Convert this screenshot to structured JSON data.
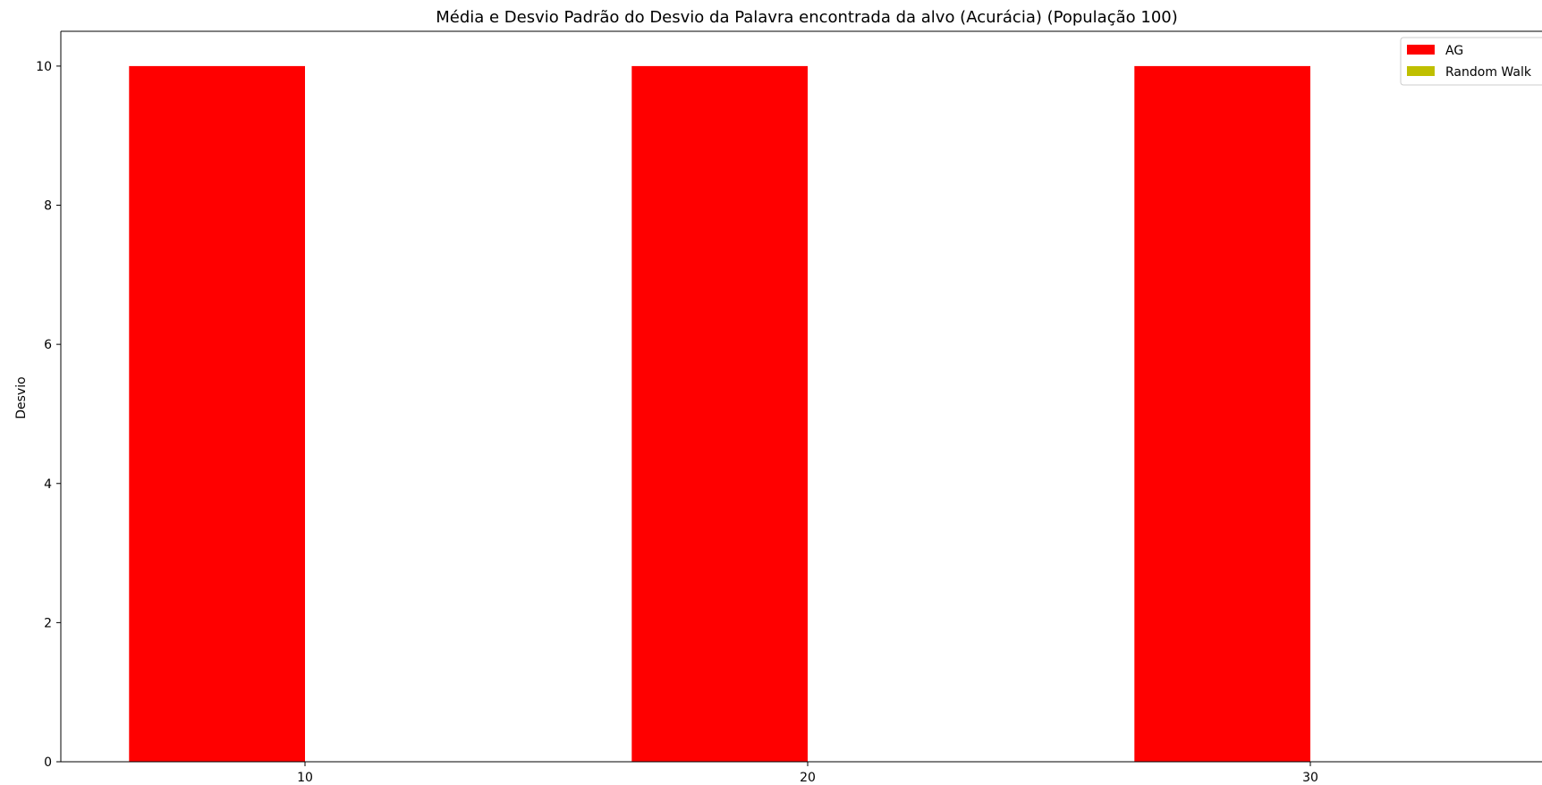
{
  "chart_data": {
    "type": "bar",
    "title": "Média e Desvio Padrão do Desvio da Palavra encontrada da alvo (Acurácia) (População 100)",
    "xlabel": "",
    "ylabel": "Desvio",
    "x_ticks": [
      "10",
      "20",
      "30"
    ],
    "y_ticks": [
      "0",
      "2",
      "4",
      "6",
      "8",
      "10"
    ],
    "ylim": [
      0,
      10.5
    ],
    "grid": false,
    "legend_position": "top-right",
    "bar_groups": [
      {
        "x": 10,
        "label": "10"
      },
      {
        "x": 20,
        "label": "20"
      },
      {
        "x": 30,
        "label": "30"
      }
    ],
    "series": [
      {
        "name": "AG",
        "color": "#ff0000",
        "values": [
          10,
          10,
          10
        ]
      },
      {
        "name": "Random Walk",
        "color": "#bfbf00",
        "values": [
          0,
          0,
          0
        ]
      }
    ]
  }
}
